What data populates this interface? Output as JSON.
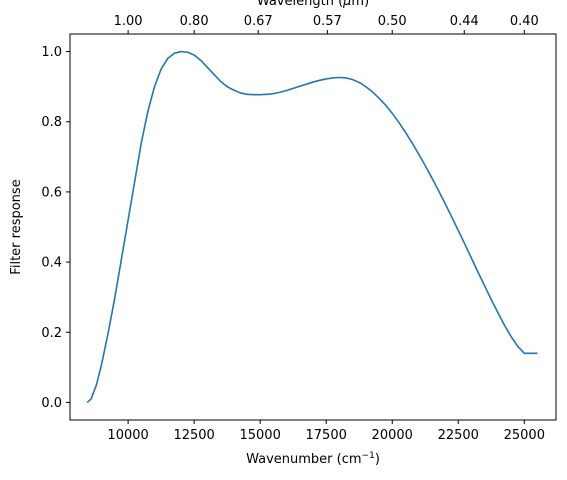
{
  "chart_data": {
    "type": "line",
    "xlabel": "Wavenumber (cm⁻¹)",
    "ylabel": "Filter response",
    "top_xlabel": "Wavelength (μm)",
    "xlim": [
      7800,
      26200
    ],
    "ylim": [
      -0.05,
      1.05
    ],
    "x_ticks": [
      10000,
      12500,
      15000,
      17500,
      20000,
      22500,
      25000
    ],
    "x_tick_labels": [
      "10000",
      "12500",
      "15000",
      "17500",
      "20000",
      "22500",
      "25000"
    ],
    "y_ticks": [
      0.0,
      0.2,
      0.4,
      0.6,
      0.8,
      1.0
    ],
    "y_tick_labels": [
      "0.0",
      "0.2",
      "0.4",
      "0.6",
      "0.8",
      "1.0"
    ],
    "top_ticks": [
      1.0,
      0.8,
      0.67,
      0.57,
      0.5,
      0.44,
      0.4
    ],
    "top_tick_labels": [
      "1.00",
      "0.80",
      "0.67",
      "0.57",
      "0.50",
      "0.44",
      "0.40"
    ],
    "grid": false,
    "series": [
      {
        "color": "#1f77b4",
        "x": [
          8450,
          8600,
          8800,
          9000,
          9250,
          9500,
          9750,
          10000,
          10250,
          10500,
          10750,
          11000,
          11250,
          11500,
          11750,
          12000,
          12250,
          12500,
          12750,
          13000,
          13250,
          13500,
          13750,
          14000,
          14250,
          14500,
          14750,
          15000,
          15250,
          15500,
          15750,
          16000,
          16250,
          16500,
          16750,
          17000,
          17250,
          17500,
          17750,
          18000,
          18250,
          18500,
          18750,
          19000,
          19250,
          19500,
          19750,
          20000,
          20250,
          20500,
          20750,
          21000,
          21250,
          21500,
          21750,
          22000,
          22250,
          22500,
          22750,
          23000,
          23250,
          23500,
          23750,
          24000,
          24250,
          24500,
          24750,
          25000,
          25250,
          25500
        ],
        "y": [
          0.0,
          0.01,
          0.05,
          0.11,
          0.2,
          0.3,
          0.41,
          0.52,
          0.63,
          0.74,
          0.83,
          0.9,
          0.95,
          0.98,
          0.995,
          1.0,
          0.998,
          0.99,
          0.975,
          0.955,
          0.935,
          0.915,
          0.9,
          0.89,
          0.882,
          0.878,
          0.877,
          0.877,
          0.878,
          0.88,
          0.884,
          0.889,
          0.895,
          0.901,
          0.907,
          0.913,
          0.918,
          0.922,
          0.925,
          0.926,
          0.925,
          0.92,
          0.912,
          0.9,
          0.885,
          0.867,
          0.847,
          0.824,
          0.798,
          0.77,
          0.74,
          0.708,
          0.675,
          0.64,
          0.604,
          0.567,
          0.529,
          0.49,
          0.451,
          0.411,
          0.371,
          0.332,
          0.293,
          0.256,
          0.22,
          0.188,
          0.16,
          0.14,
          0.14,
          0.14
        ]
      }
    ]
  }
}
